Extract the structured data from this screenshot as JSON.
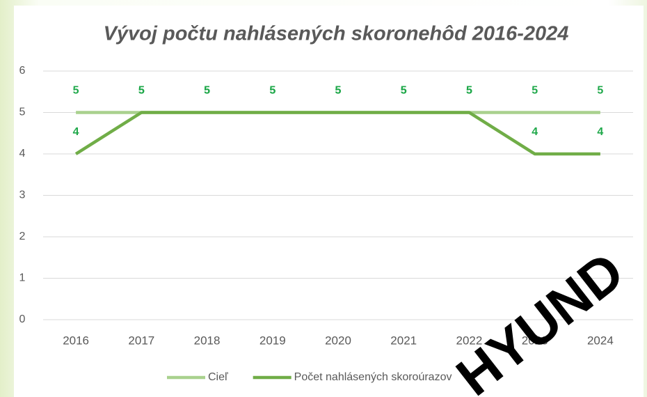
{
  "chart_data": {
    "type": "line",
    "title": "Vývoj počtu nahlásených skoronehôd 2016-2024",
    "categories": [
      "2016",
      "2017",
      "2018",
      "2019",
      "2020",
      "2021",
      "2022",
      "2023",
      "2024"
    ],
    "series": [
      {
        "name": "Cieľ",
        "color": "#a9d18e",
        "values": [
          5,
          5,
          5,
          5,
          5,
          5,
          5,
          5,
          5
        ]
      },
      {
        "name": "Počet nahlásených skoroúrazov",
        "color": "#70ad47",
        "values": [
          4,
          5,
          5,
          5,
          5,
          5,
          5,
          4,
          4
        ]
      }
    ],
    "ylim": [
      0,
      6
    ],
    "yticks": [
      0,
      1,
      2,
      3,
      4,
      5,
      6
    ],
    "grid": true,
    "legend": "bottom",
    "label_color": "#1fa84a",
    "watermark": "HYUND"
  }
}
